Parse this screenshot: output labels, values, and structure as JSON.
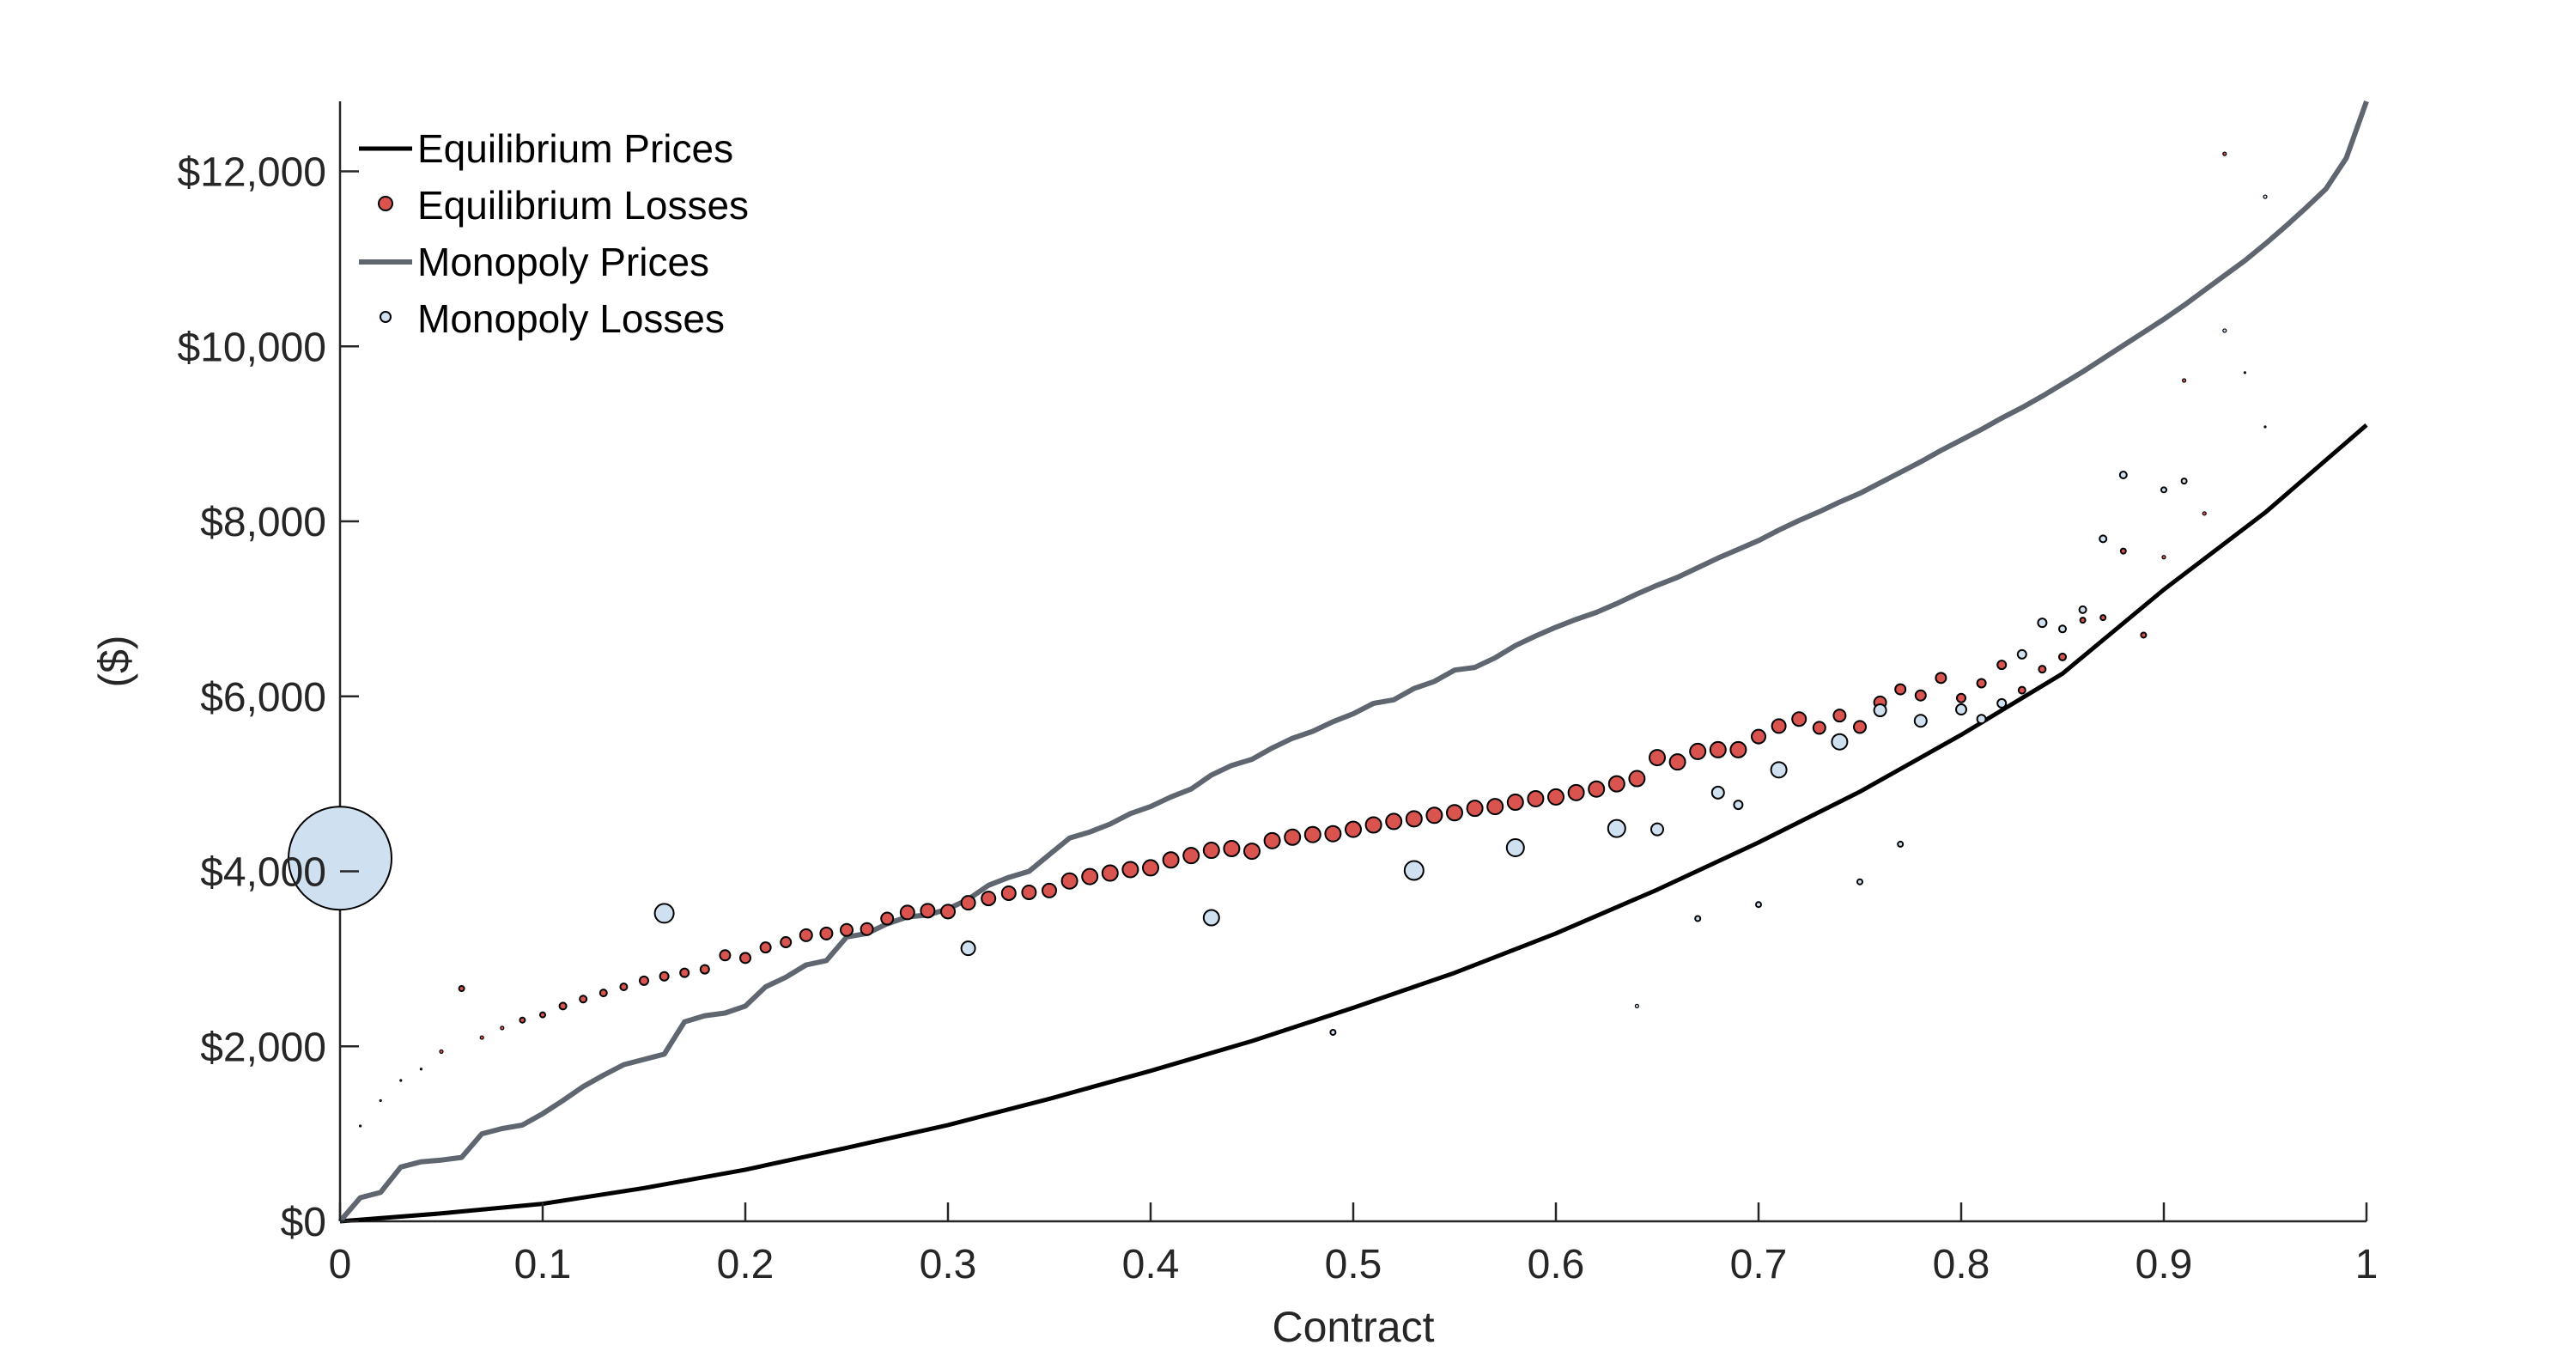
{
  "chart_data": {
    "type": "scatter",
    "xlabel": "Contract",
    "ylabel": "($)",
    "xlim": [
      0,
      1
    ],
    "ylim": [
      0,
      12800
    ],
    "grid": false,
    "legend_placement": "top-left",
    "x_ticks": [
      0,
      0.1,
      0.2,
      0.3,
      0.4,
      0.5,
      0.6,
      0.7,
      0.8,
      0.9,
      1
    ],
    "x_tick_labels": [
      "0",
      "0.1",
      "0.2",
      "0.3",
      "0.4",
      "0.5",
      "0.6",
      "0.7",
      "0.8",
      "0.9",
      "1"
    ],
    "y_ticks": [
      0,
      2000,
      4000,
      6000,
      8000,
      10000,
      12000
    ],
    "y_tick_labels": [
      "$0",
      "$2,000",
      "$4,000",
      "$6,000",
      "$8,000",
      "$10,000",
      "$12,000"
    ],
    "colors": {
      "equilibrium_prices": "#000000",
      "equilibrium_losses": "#d9534f",
      "monopoly_prices": "#5f6670",
      "monopoly_losses": "#cfe0f1",
      "axis": "#262626"
    },
    "legend": [
      {
        "label": "Equilibrium Prices",
        "marker": "line"
      },
      {
        "label": "Equilibrium Losses",
        "marker": "dot"
      },
      {
        "label": "Monopoly Prices",
        "marker": "line"
      },
      {
        "label": "Monopoly Losses",
        "marker": "circle"
      }
    ],
    "series": [
      {
        "name": "Equilibrium Prices",
        "kind": "line",
        "x": [
          0,
          0.05,
          0.1,
          0.15,
          0.2,
          0.25,
          0.3,
          0.35,
          0.4,
          0.45,
          0.5,
          0.55,
          0.6,
          0.65,
          0.7,
          0.75,
          0.8,
          0.85,
          0.9,
          0.95,
          1
        ],
        "y": [
          0,
          90,
          200,
          380,
          590,
          840,
          1100,
          1400,
          1720,
          2060,
          2440,
          2840,
          3290,
          3790,
          4330,
          4910,
          5560,
          6260,
          7220,
          8100,
          9100
        ]
      },
      {
        "name": "Monopoly Prices",
        "kind": "line",
        "x": [
          0,
          0.01,
          0.02,
          0.03,
          0.04,
          0.05,
          0.06,
          0.07,
          0.08,
          0.09,
          0.1,
          0.11,
          0.12,
          0.13,
          0.14,
          0.15,
          0.16,
          0.17,
          0.18,
          0.19,
          0.2,
          0.21,
          0.22,
          0.23,
          0.24,
          0.25,
          0.26,
          0.27,
          0.28,
          0.29,
          0.3,
          0.31,
          0.32,
          0.33,
          0.34,
          0.35,
          0.36,
          0.37,
          0.38,
          0.39,
          0.4,
          0.41,
          0.42,
          0.43,
          0.44,
          0.45,
          0.46,
          0.47,
          0.48,
          0.49,
          0.5,
          0.51,
          0.52,
          0.53,
          0.54,
          0.55,
          0.56,
          0.57,
          0.58,
          0.59,
          0.6,
          0.61,
          0.62,
          0.63,
          0.64,
          0.65,
          0.66,
          0.67,
          0.68,
          0.69,
          0.7,
          0.71,
          0.72,
          0.73,
          0.74,
          0.75,
          0.76,
          0.77,
          0.78,
          0.79,
          0.8,
          0.81,
          0.82,
          0.83,
          0.84,
          0.85,
          0.86,
          0.87,
          0.88,
          0.89,
          0.9,
          0.91,
          0.92,
          0.93,
          0.94,
          0.95,
          0.96,
          0.97,
          0.98,
          0.99,
          1
        ],
        "y": [
          0,
          270,
          330,
          620,
          680,
          700,
          730,
          1000,
          1060,
          1100,
          1230,
          1380,
          1540,
          1670,
          1790,
          1850,
          1910,
          2280,
          2350,
          2380,
          2460,
          2680,
          2790,
          2930,
          2980,
          3250,
          3290,
          3400,
          3480,
          3500,
          3570,
          3680,
          3840,
          3930,
          4000,
          4190,
          4380,
          4450,
          4540,
          4660,
          4740,
          4850,
          4940,
          5100,
          5210,
          5280,
          5410,
          5520,
          5600,
          5710,
          5800,
          5920,
          5960,
          6090,
          6170,
          6300,
          6330,
          6440,
          6580,
          6690,
          6790,
          6880,
          6960,
          7060,
          7170,
          7270,
          7360,
          7470,
          7580,
          7680,
          7780,
          7900,
          8010,
          8110,
          8220,
          8320,
          8440,
          8560,
          8680,
          8810,
          8930,
          9050,
          9180,
          9300,
          9430,
          9570,
          9710,
          9860,
          10010,
          10160,
          10310,
          10470,
          10640,
          10810,
          10980,
          11170,
          11370,
          11580,
          11800,
          12150,
          12800
        ]
      },
      {
        "name": "Equilibrium Losses",
        "kind": "scatter",
        "x": [
          0.01,
          0.02,
          0.03,
          0.04,
          0.05,
          0.06,
          0.07,
          0.08,
          0.09,
          0.1,
          0.11,
          0.12,
          0.13,
          0.14,
          0.15,
          0.16,
          0.17,
          0.18,
          0.19,
          0.2,
          0.21,
          0.22,
          0.23,
          0.24,
          0.25,
          0.26,
          0.27,
          0.28,
          0.29,
          0.3,
          0.31,
          0.32,
          0.33,
          0.34,
          0.35,
          0.36,
          0.37,
          0.38,
          0.39,
          0.4,
          0.41,
          0.42,
          0.43,
          0.44,
          0.45,
          0.46,
          0.47,
          0.48,
          0.49,
          0.5,
          0.51,
          0.52,
          0.53,
          0.54,
          0.55,
          0.56,
          0.57,
          0.58,
          0.59,
          0.6,
          0.61,
          0.62,
          0.63,
          0.64,
          0.65,
          0.66,
          0.67,
          0.68,
          0.69,
          0.7,
          0.71,
          0.72,
          0.73,
          0.74,
          0.75,
          0.76,
          0.77,
          0.78,
          0.79,
          0.8,
          0.81,
          0.82,
          0.83,
          0.84,
          0.85,
          0.86,
          0.87,
          0.88,
          0.89,
          0.9,
          0.91,
          0.92,
          0.93,
          0.94,
          0.95
        ],
        "y": [
          1090,
          1380,
          1610,
          1740,
          1940,
          2660,
          2100,
          2210,
          2300,
          2360,
          2460,
          2540,
          2610,
          2680,
          2750,
          2800,
          2840,
          2880,
          3040,
          3010,
          3130,
          3190,
          3270,
          3290,
          3330,
          3340,
          3460,
          3530,
          3550,
          3540,
          3640,
          3690,
          3750,
          3760,
          3780,
          3890,
          3940,
          3980,
          4020,
          4040,
          4130,
          4180,
          4240,
          4260,
          4230,
          4350,
          4390,
          4420,
          4430,
          4480,
          4530,
          4570,
          4600,
          4640,
          4670,
          4720,
          4740,
          4790,
          4830,
          4850,
          4900,
          4940,
          5000,
          5060,
          5300,
          5250,
          5370,
          5390,
          5390,
          5540,
          5660,
          5740,
          5640,
          5780,
          5650,
          5930,
          6080,
          6010,
          6210,
          5980,
          6150,
          6360,
          6070,
          6310,
          6450,
          6870,
          6900,
          7660,
          6700,
          7590,
          9610,
          8090,
          12200,
          9700,
          9080
        ],
        "size": [
          1,
          1,
          1,
          1,
          2,
          3,
          2,
          2,
          3,
          3,
          4,
          4,
          4,
          4,
          5,
          5,
          5,
          5,
          6,
          6,
          6,
          6,
          7,
          7,
          7,
          7,
          7,
          8,
          8,
          8,
          8,
          8,
          8,
          8,
          8,
          9,
          9,
          9,
          9,
          9,
          9,
          9,
          9,
          9,
          9,
          9,
          9,
          9,
          9,
          9,
          9,
          9,
          9,
          9,
          9,
          9,
          9,
          9,
          9,
          9,
          9,
          9,
          9,
          9,
          9,
          9,
          9,
          9,
          9,
          8,
          8,
          8,
          7,
          7,
          7,
          7,
          6,
          6,
          6,
          5,
          5,
          5,
          4,
          4,
          4,
          3,
          3,
          3,
          3,
          2,
          2,
          2,
          2,
          1,
          1
        ]
      },
      {
        "name": "Monopoly Losses",
        "kind": "scatter",
        "x": [
          0,
          0.16,
          0.31,
          0.43,
          0.49,
          0.53,
          0.58,
          0.63,
          0.64,
          0.65,
          0.67,
          0.68,
          0.69,
          0.7,
          0.71,
          0.74,
          0.75,
          0.76,
          0.77,
          0.78,
          0.8,
          0.81,
          0.82,
          0.83,
          0.84,
          0.85,
          0.86,
          0.87,
          0.88,
          0.9,
          0.91,
          0.93,
          0.95
        ],
        "y": [
          4150,
          3520,
          3120,
          3470,
          2160,
          4010,
          4270,
          4490,
          2460,
          4480,
          3460,
          4900,
          4760,
          3620,
          5160,
          5480,
          3880,
          5840,
          4310,
          5720,
          5850,
          5740,
          5920,
          6480,
          6840,
          6770,
          6990,
          7800,
          8530,
          8360,
          8460,
          10180,
          11710
        ],
        "size": [
          60,
          11,
          8,
          9,
          3,
          11,
          10,
          10,
          2,
          7,
          3,
          7,
          5,
          3,
          9,
          9,
          3,
          7,
          3,
          7,
          6,
          5,
          5,
          5,
          5,
          4,
          4,
          4,
          4,
          3,
          3,
          2,
          2
        ]
      }
    ]
  }
}
